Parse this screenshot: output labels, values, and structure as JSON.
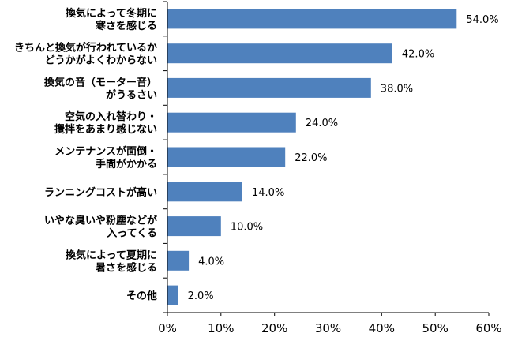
{
  "chart_data": {
    "type": "bar",
    "orientation": "horizontal",
    "categories": [
      [
        "換気によって冬期に",
        "寒さを感じる"
      ],
      [
        "きちんと換気が行われているか",
        "どうかがよくわからない"
      ],
      [
        "換気の音（モーター音）",
        "がうるさい"
      ],
      [
        "空気の入れ替わり・",
        "攪拌をあまり感じない"
      ],
      [
        "メンテナンスが面倒・",
        "手間がかかる"
      ],
      [
        "ランニングコストが高い"
      ],
      [
        "いやな臭いや粉塵などが",
        "入ってくる"
      ],
      [
        "換気によって夏期に",
        "暑さを感じる"
      ],
      [
        "その他"
      ]
    ],
    "values": [
      54.0,
      42.0,
      38.0,
      24.0,
      22.0,
      14.0,
      10.0,
      4.0,
      2.0
    ],
    "value_labels": [
      "54.0%",
      "42.0%",
      "38.0%",
      "24.0%",
      "22.0%",
      "14.0%",
      "10.0%",
      "4.0%",
      "2.0%"
    ],
    "xlim": [
      0,
      60
    ],
    "xticks": [
      0,
      10,
      20,
      30,
      40,
      50,
      60
    ],
    "xtick_labels": [
      "0%",
      "10%",
      "20%",
      "30%",
      "40%",
      "50%",
      "60%"
    ],
    "bar_color": "#4f81bd",
    "grid": false,
    "legend": "none"
  }
}
